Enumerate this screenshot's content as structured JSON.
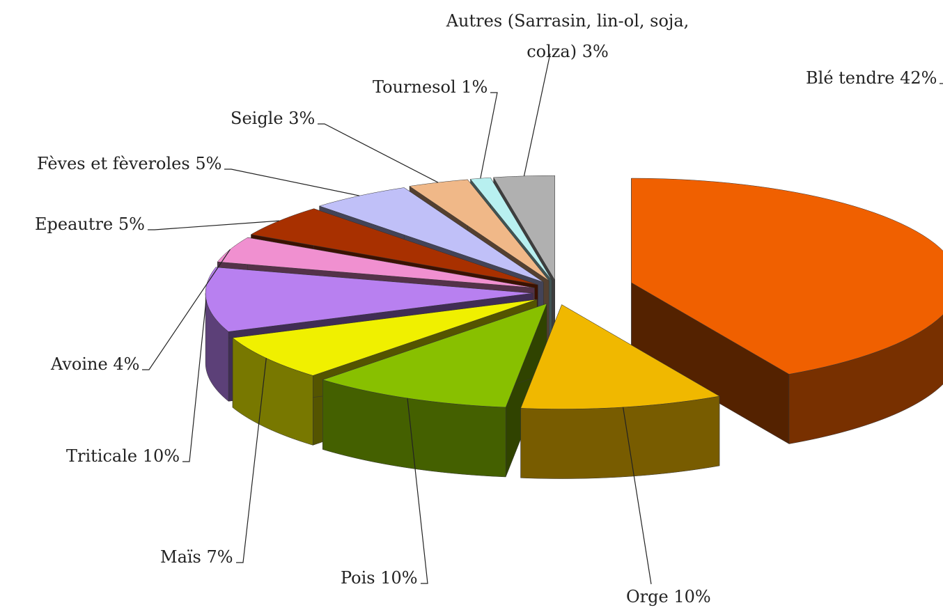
{
  "chart_data": {
    "type": "pie3d",
    "categories": [
      "Blé tendre",
      "Orge",
      "Pois",
      "Maïs",
      "Triticale",
      "Avoine",
      "Epeautre",
      "Fèves et fèveroles",
      "Seigle",
      "Tournesol",
      "Autres (Sarrasin, lin-ol, soja, colza)"
    ],
    "values": [
      42,
      10,
      10,
      7,
      10,
      4,
      5,
      5,
      3,
      1,
      3
    ],
    "value_labels": [
      "42%",
      "10%",
      "10%",
      "7%",
      "10%",
      "4%",
      "5%",
      "5%",
      "3%",
      "1%",
      "3%"
    ],
    "colors": [
      "#f06000",
      "#f0b800",
      "#88c000",
      "#f0f000",
      "#b880f0",
      "#f090d0",
      "#a83000",
      "#c0c0f8",
      "#f0b888",
      "#b8f0f0",
      "#b0b0b0"
    ]
  }
}
